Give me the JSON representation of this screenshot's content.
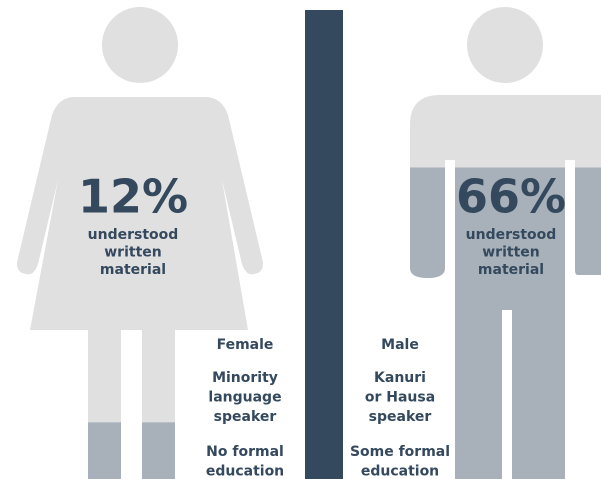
{
  "chart_data": {
    "type": "pictograph",
    "ylim": [
      0,
      100
    ],
    "empty_color": "#e0e0e0",
    "fill_color": "#a8b1ba",
    "text_color": "#34495e",
    "divider_color": "#34495e",
    "figures": [
      {
        "shape": "female",
        "value": 12,
        "value_label": "12%",
        "caption": [
          "understood",
          "written",
          "material"
        ],
        "traits": [
          [
            "Female"
          ],
          [
            "Minority",
            "language",
            "speaker"
          ],
          [
            "No formal",
            "education"
          ]
        ]
      },
      {
        "shape": "male",
        "value": 66,
        "value_label": "66%",
        "caption": [
          "understood",
          "written",
          "material"
        ],
        "traits": [
          [
            "Male"
          ],
          [
            "Kanuri",
            "or Hausa",
            "speaker"
          ],
          [
            "Some formal",
            "education"
          ]
        ]
      }
    ]
  }
}
